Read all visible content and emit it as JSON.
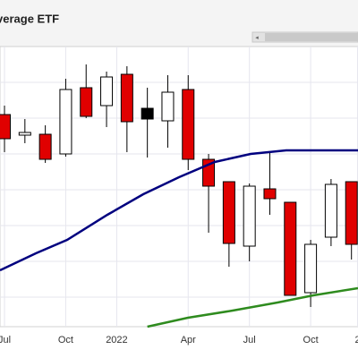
{
  "chart_data": {
    "type": "candlestick",
    "title": "verage ETF",
    "x": [
      0,
      1,
      2,
      3,
      4,
      5,
      6,
      7,
      8,
      9,
      10,
      11,
      12,
      13,
      14,
      15,
      16,
      17
    ],
    "open": [
      237,
      214,
      215,
      193,
      267,
      247,
      282,
      244,
      230,
      265,
      187,
      162,
      90,
      154,
      139,
      38,
      100,
      162
    ],
    "high": [
      247,
      232,
      225,
      277,
      293,
      285,
      291,
      267,
      281,
      281,
      193,
      162,
      160,
      195,
      139,
      97,
      165,
      162
    ],
    "low": [
      195,
      205,
      183,
      190,
      233,
      223,
      195,
      189,
      200,
      175,
      105,
      67,
      73,
      125,
      35,
      22,
      90,
      75
    ],
    "close": [
      210,
      217,
      187,
      265,
      235,
      279,
      229,
      232,
      262,
      187,
      157,
      93,
      157,
      143,
      35,
      92,
      159,
      92
    ],
    "colors": [
      "#e00000",
      "#ffffff",
      "#e00000",
      "#ffffff",
      "#e00000",
      "#ffffff",
      "#e00000",
      "#000000",
      "#ffffff",
      "#e00000",
      "#e00000",
      "#e00000",
      "#ffffff",
      "#e00000",
      "#e00000",
      "#ffffff",
      "#ffffff",
      "#e00000"
    ],
    "lines": [
      {
        "color": "#00007f",
        "x": [
          -0.22,
          1.54,
          3.07,
          5.04,
          6.8,
          8.55,
          10.3,
          12.06,
          13.8,
          15.57,
          17.32
        ],
        "values": [
          63,
          82,
          97,
          125,
          148,
          167,
          184,
          193,
          197,
          197,
          197
        ]
      },
      {
        "color": "#2e8b1e",
        "x": [
          7.0,
          8.99,
          11.18,
          13.38,
          15.13,
          17.32
        ],
        "values": [
          0,
          10,
          18,
          27,
          35,
          43
        ]
      }
    ],
    "xlim": [
      -0.22,
      17.32
    ],
    "ylim": [
      0,
      313
    ],
    "xticks": [
      {
        "value": 0,
        "label": "Jul"
      },
      {
        "value": 3,
        "label": "Oct"
      },
      {
        "value": 5.5,
        "label": "2022"
      },
      {
        "value": 9,
        "label": "Apr"
      },
      {
        "value": 12,
        "label": "Jul"
      },
      {
        "value": 15,
        "label": "Oct"
      },
      {
        "value": 17.3,
        "label": "2"
      }
    ],
    "ygrid": [
      33,
      73,
      113,
      153,
      193,
      233,
      273
    ]
  }
}
